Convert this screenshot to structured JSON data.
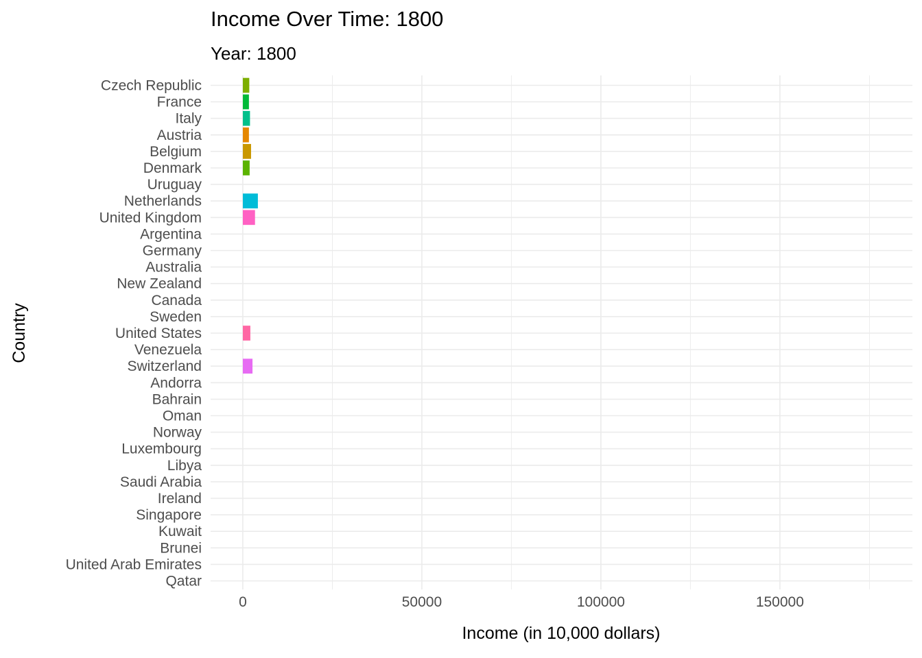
{
  "chart_data": {
    "type": "bar",
    "orientation": "horizontal",
    "title": "Income Over Time: 1800",
    "subtitle": "Year: 1800",
    "xlabel": "Income (in 10,000 dollars)",
    "ylabel": "Country",
    "xlim": [
      -9000,
      187000
    ],
    "xticks": [
      0,
      50000,
      100000,
      150000
    ],
    "xtick_labels": [
      "0",
      "50000",
      "100000",
      "150000"
    ],
    "grid": true,
    "categories": [
      "Czech Republic",
      "France",
      "Italy",
      "Austria",
      "Belgium",
      "Denmark",
      "Uruguay",
      "Netherlands",
      "United Kingdom",
      "Argentina",
      "Germany",
      "Australia",
      "New Zealand",
      "Canada",
      "Sweden",
      "United States",
      "Venezuela",
      "Switzerland",
      "Andorra",
      "Bahrain",
      "Oman",
      "Norway",
      "Luxembourg",
      "Libya",
      "Saudi Arabia",
      "Ireland",
      "Singapore",
      "Kuwait",
      "Brunei",
      "United Arab Emirates",
      "Qatar"
    ],
    "values": [
      1800,
      1700,
      2000,
      1700,
      2300,
      1900,
      0,
      4200,
      3400,
      0,
      0,
      0,
      0,
      0,
      0,
      2100,
      0,
      2700,
      0,
      0,
      0,
      0,
      0,
      0,
      0,
      0,
      0,
      0,
      0,
      0,
      0
    ],
    "colors": [
      "#7CAE00",
      "#00BA38",
      "#00C08B",
      "#E58700",
      "#C99800",
      "#5BB300",
      "#00BD5C",
      "#00BCD8",
      "#FF61C3",
      "#F8766D",
      "#A3A500",
      "#E38900",
      "#00B0F6",
      "#00BF7D",
      "#00C1A3",
      "#FF67A4",
      "#F37B59",
      "#E76BF3",
      "#D89000",
      "#B79F00",
      "#00A5FF",
      "#9590FF",
      "#619CFF",
      "#BF80FF",
      "#FC61D5",
      "#FF6C91",
      "#39B600",
      "#00BAE0",
      "#D575FE",
      "#00C1AA",
      "#9DA700"
    ]
  }
}
